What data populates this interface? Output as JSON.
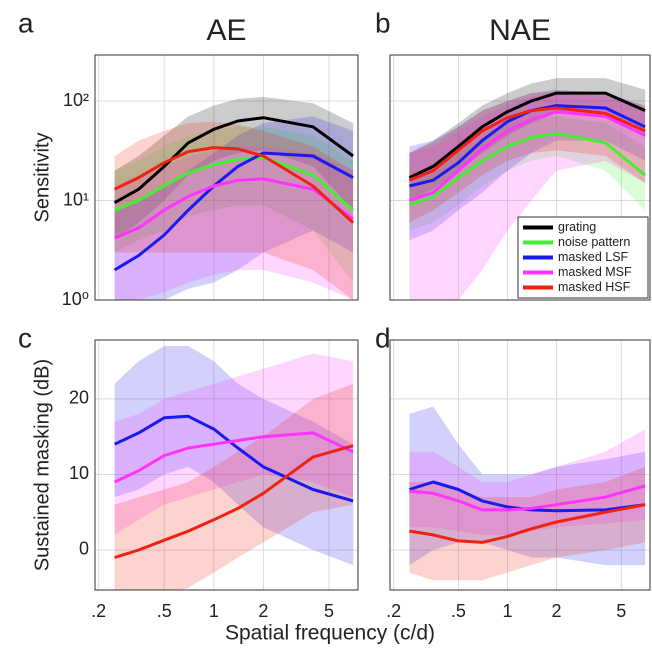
{
  "xlabel": "Spatial frequency (c/d)",
  "chart_data": [
    {
      "type": "line",
      "panel_label": "a",
      "title": "AE",
      "ylabel": "Sensitivity",
      "ylog": true,
      "grid": true,
      "xlim": [
        0.19,
        7.5
      ],
      "xticks": [
        0.2,
        0.5,
        1,
        2,
        5
      ],
      "show_xtick_labels": false,
      "ylim": [
        1,
        290
      ],
      "yticks": [
        {
          "value": 1,
          "label": "10⁰"
        },
        {
          "value": 10,
          "label": "10¹"
        },
        {
          "value": 100,
          "label": "10²"
        }
      ],
      "x": [
        0.25,
        0.35,
        0.5,
        0.7,
        1,
        1.4,
        2,
        4,
        7
      ],
      "series": [
        {
          "name": "grating",
          "color": "#000000",
          "values": [
            9.5,
            13,
            22,
            38,
            52,
            63,
            68,
            55,
            28
          ],
          "lower": [
            4,
            6,
            10,
            18,
            25,
            30,
            32,
            22,
            8
          ],
          "upper": [
            20,
            28,
            45,
            70,
            90,
            105,
            110,
            95,
            60
          ]
        },
        {
          "name": "noise pattern",
          "color": "#44ee33",
          "values": [
            8,
            10,
            14,
            19,
            23,
            26,
            27,
            18,
            8
          ],
          "lower": [
            3,
            4,
            5,
            7,
            8,
            9,
            9,
            5,
            1.5
          ],
          "upper": [
            20,
            25,
            35,
            45,
            50,
            55,
            55,
            45,
            25
          ]
        },
        {
          "name": "masked LSF",
          "color": "#1a1aee",
          "values": [
            2,
            2.8,
            4.5,
            8,
            14,
            22,
            30,
            28,
            17
          ],
          "lower": [
            0.5,
            0.7,
            1,
            1.3,
            1.5,
            2,
            3,
            5,
            3
          ],
          "upper": [
            8,
            10,
            14,
            20,
            30,
            45,
            60,
            70,
            50
          ]
        },
        {
          "name": "masked MSF",
          "color": "#ff33ff",
          "values": [
            4.2,
            5.3,
            8,
            11,
            14,
            16,
            16.5,
            13,
            6.5
          ],
          "lower": [
            1,
            1,
            1.2,
            1.5,
            1.8,
            2,
            2,
            1.5,
            1
          ],
          "upper": [
            14,
            18,
            22,
            28,
            32,
            35,
            35,
            30,
            20
          ]
        },
        {
          "name": "masked HSF",
          "color": "#ee2211",
          "values": [
            13,
            17,
            24,
            31,
            34,
            33,
            28,
            14,
            6
          ],
          "lower": [
            3,
            3,
            3,
            3,
            3,
            3,
            3,
            2,
            1
          ],
          "upper": [
            28,
            40,
            50,
            60,
            62,
            58,
            50,
            35,
            20
          ]
        }
      ]
    },
    {
      "type": "line",
      "panel_label": "b",
      "title": "NAE",
      "ylog": true,
      "grid": true,
      "legend": "lower right",
      "xlim": [
        0.19,
        7.5
      ],
      "xticks": [
        0.2,
        0.5,
        1,
        2,
        5
      ],
      "show_xtick_labels": false,
      "ylim": [
        1,
        290
      ],
      "yticks": [
        1,
        10,
        100
      ],
      "show_ytick_labels": false,
      "x": [
        0.25,
        0.35,
        0.5,
        0.7,
        1,
        1.4,
        2,
        4,
        7
      ],
      "series": [
        {
          "name": "grating",
          "color": "#000000",
          "values": [
            17,
            22,
            35,
            55,
            78,
            100,
            120,
            120,
            80
          ],
          "lower": [
            10,
            13,
            20,
            30,
            45,
            60,
            75,
            70,
            45
          ],
          "upper": [
            30,
            40,
            60,
            90,
            120,
            150,
            170,
            170,
            130
          ]
        },
        {
          "name": "noise pattern",
          "color": "#44ee33",
          "values": [
            9,
            11,
            17,
            25,
            35,
            43,
            47,
            38,
            18
          ],
          "lower": [
            5,
            6,
            9,
            14,
            20,
            25,
            28,
            20,
            8
          ],
          "upper": [
            16,
            20,
            30,
            40,
            55,
            65,
            70,
            60,
            35
          ]
        },
        {
          "name": "masked LSF",
          "color": "#1a1aee",
          "values": [
            14,
            16,
            24,
            40,
            62,
            80,
            90,
            85,
            55
          ],
          "lower": [
            4,
            5,
            8,
            12,
            20,
            30,
            40,
            40,
            25
          ],
          "upper": [
            35,
            40,
            55,
            80,
            100,
            120,
            130,
            120,
            90
          ]
        },
        {
          "name": "masked MSF",
          "color": "#ff33ff",
          "values": [
            10,
            12,
            20,
            33,
            50,
            65,
            78,
            70,
            45
          ],
          "lower": [
            0.3,
            0.5,
            1,
            2,
            5,
            10,
            20,
            25,
            15
          ],
          "upper": [
            30,
            35,
            50,
            70,
            90,
            110,
            120,
            110,
            80
          ]
        },
        {
          "name": "masked HSF",
          "color": "#ee2211",
          "values": [
            16,
            20,
            32,
            50,
            68,
            80,
            85,
            75,
            50
          ],
          "lower": [
            6,
            8,
            12,
            18,
            25,
            30,
            32,
            28,
            15
          ],
          "upper": [
            30,
            38,
            55,
            80,
            100,
            120,
            125,
            115,
            90
          ]
        }
      ]
    },
    {
      "type": "line",
      "panel_label": "c",
      "ylabel": "Sustained masking (dB)",
      "ylog": false,
      "grid": true,
      "xlim": [
        0.19,
        7.5
      ],
      "xticks": [
        {
          "value": 0.2,
          "label": ".2"
        },
        {
          "value": 0.5,
          "label": ".5"
        },
        1,
        2,
        5
      ],
      "ylim": [
        -5.3,
        27.8
      ],
      "yticks": [
        0,
        10,
        20
      ],
      "x": [
        0.25,
        0.35,
        0.5,
        0.7,
        1,
        1.4,
        2,
        4,
        7
      ],
      "series": [
        {
          "name": "masked LSF",
          "color": "#1a1aee",
          "values": [
            14,
            15.5,
            17.5,
            17.7,
            16,
            13.5,
            11,
            8,
            6.5
          ],
          "lower": [
            7,
            8,
            10,
            11,
            9,
            6,
            3,
            0,
            -2
          ],
          "upper": [
            22,
            25,
            27,
            27,
            25,
            22,
            20,
            17,
            14
          ]
        },
        {
          "name": "masked MSF",
          "color": "#ff33ff",
          "values": [
            9,
            10.5,
            12.5,
            13.5,
            14,
            14.5,
            15,
            15.5,
            13
          ],
          "lower": [
            2,
            4,
            6,
            7,
            8,
            9,
            10,
            9,
            7
          ],
          "upper": [
            17,
            18,
            20,
            21,
            22,
            23,
            24,
            26,
            25
          ]
        },
        {
          "name": "masked HSF",
          "color": "#ee2211",
          "values": [
            -1,
            0,
            1.3,
            2.5,
            4,
            5.5,
            7.5,
            12.3,
            13.8
          ],
          "lower": [
            -8,
            -7,
            -6,
            -5,
            -3,
            -1,
            1,
            5,
            6
          ],
          "upper": [
            6,
            7,
            8,
            9,
            11,
            13,
            15,
            20,
            22
          ]
        }
      ]
    },
    {
      "type": "line",
      "panel_label": "d",
      "ylog": false,
      "grid": true,
      "xlim": [
        0.19,
        7.5
      ],
      "xticks": [
        {
          "value": 0.2,
          "label": ".2"
        },
        {
          "value": 0.5,
          "label": ".5"
        },
        1,
        2,
        5
      ],
      "ylim": [
        -5.3,
        27.8
      ],
      "yticks": [
        0,
        10,
        20
      ],
      "show_ytick_labels": false,
      "x": [
        0.25,
        0.35,
        0.5,
        0.7,
        1,
        1.4,
        2,
        4,
        7
      ],
      "series": [
        {
          "name": "masked LSF",
          "color": "#1a1aee",
          "values": [
            8,
            9,
            8,
            6.5,
            5.7,
            5.3,
            5.2,
            5.3,
            6
          ],
          "lower": [
            -2,
            0,
            1,
            1,
            0,
            -1,
            -1,
            -2,
            -2
          ],
          "upper": [
            18,
            19,
            14,
            10,
            10,
            10,
            11,
            12,
            13
          ]
        },
        {
          "name": "masked MSF",
          "color": "#ff33ff",
          "values": [
            7.8,
            7.5,
            6.5,
            5.3,
            5.3,
            5.5,
            6,
            7,
            8.5
          ],
          "lower": [
            3,
            3,
            2.5,
            2,
            2,
            2.5,
            3,
            3.5,
            4
          ],
          "upper": [
            13,
            13,
            11,
            9,
            9,
            10,
            11,
            13,
            16
          ]
        },
        {
          "name": "masked HSF",
          "color": "#ee2211",
          "values": [
            2.5,
            2,
            1.2,
            1,
            1.8,
            2.8,
            3.7,
            5,
            6
          ],
          "lower": [
            -3,
            -4,
            -4,
            -4,
            -3,
            -2,
            -1,
            0,
            1
          ],
          "upper": [
            9,
            9,
            8,
            7,
            7,
            7,
            8,
            9,
            11
          ]
        }
      ]
    }
  ]
}
